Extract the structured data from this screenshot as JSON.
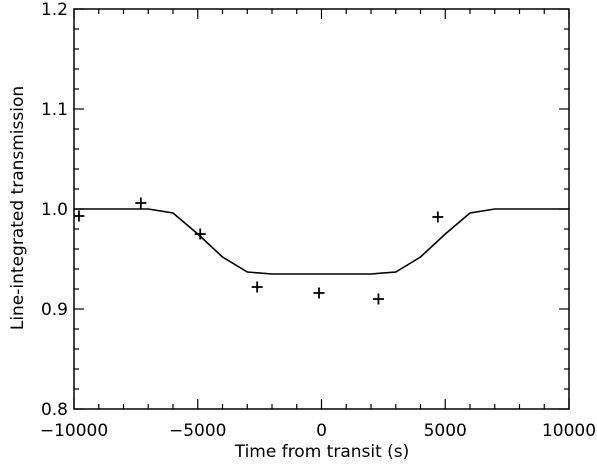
{
  "chart_data": {
    "type": "scatter",
    "title": "",
    "xlabel": "Time from transit (s)",
    "ylabel": "Line-integrated transmission",
    "xlim": [
      -10000,
      10000
    ],
    "ylim": [
      0.8,
      1.2
    ],
    "x_ticks": [
      -10000,
      -5000,
      0,
      5000,
      10000
    ],
    "x_tick_labels": [
      "−10000",
      "−5000",
      "0",
      "5000",
      "10000"
    ],
    "y_ticks": [
      0.8,
      0.9,
      1.0,
      1.1,
      1.2
    ],
    "y_tick_labels": [
      "0.8",
      "0.9",
      "1.0",
      "1.1",
      "1.2"
    ],
    "grid": false,
    "series": [
      {
        "kind": "line",
        "x": [
          -10000,
          -7000,
          -6000,
          -5000,
          -4000,
          -3000,
          -2000,
          0,
          2000,
          3000,
          4000,
          5000,
          6000,
          7000,
          10000
        ],
        "y": [
          1.0,
          1.0,
          0.996,
          0.975,
          0.952,
          0.937,
          0.935,
          0.935,
          0.935,
          0.937,
          0.952,
          0.975,
          0.996,
          1.0,
          1.0
        ]
      },
      {
        "kind": "points",
        "marker": "plus",
        "x": [
          -9800,
          -7300,
          -4900,
          -2600,
          -100,
          2300,
          4700
        ],
        "y": [
          0.993,
          1.006,
          0.975,
          0.922,
          0.916,
          0.91,
          0.992
        ]
      }
    ]
  }
}
